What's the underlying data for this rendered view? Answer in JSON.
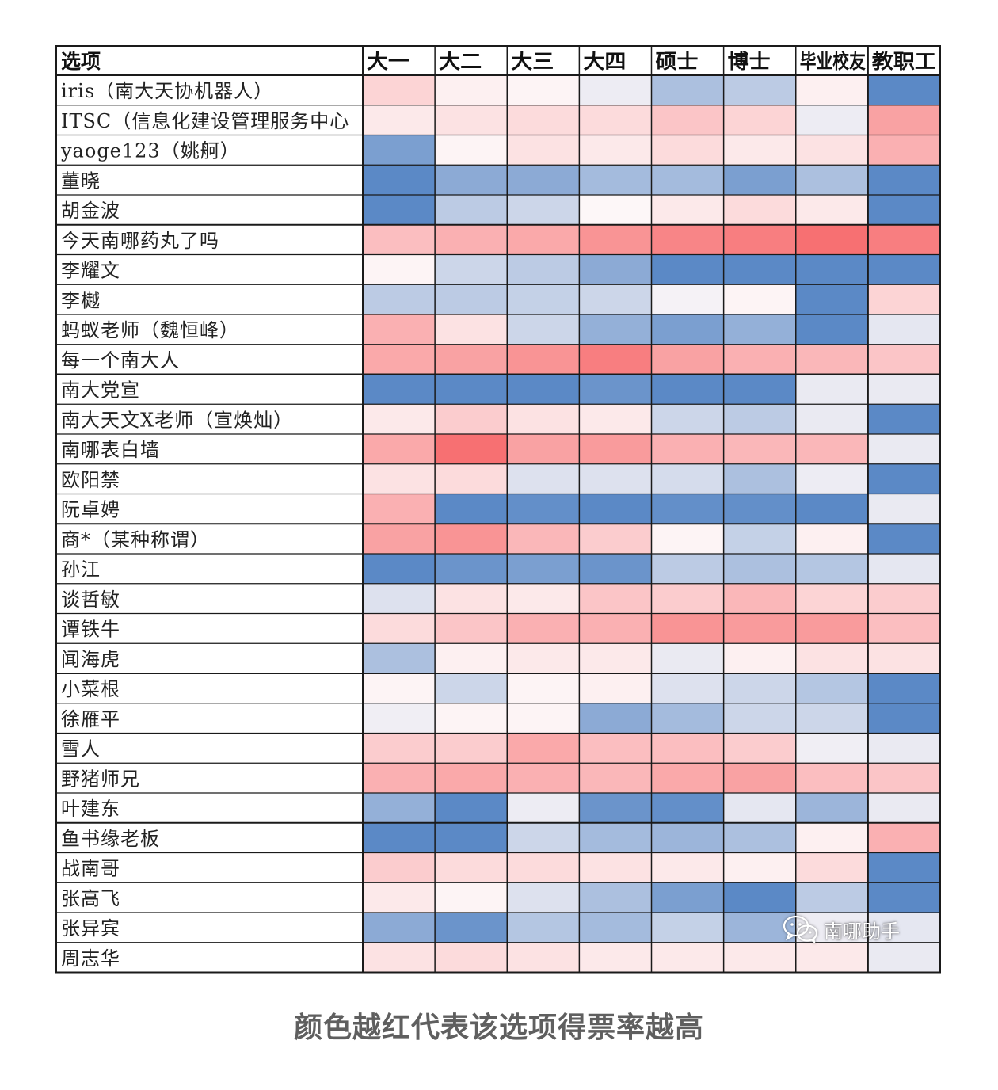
{
  "chart_data": {
    "type": "heatmap",
    "header_label": "选项",
    "columns": [
      "大一",
      "大二",
      "大三",
      "大四",
      "硕士",
      "博士",
      "毕业校友",
      "教职工"
    ],
    "rows": [
      "iris（南大天协机器人）",
      "ITSC（信息化建设管理服务中心",
      "yaoge123（姚舸）",
      "董晓",
      "胡金波",
      "今天南哪药丸了吗",
      "李耀文",
      "李樾",
      "蚂蚁老师（魏恒峰）",
      "每一个南大人",
      "南大党宣",
      "南大天文X老师（宣焕灿）",
      "南哪表白墙",
      "欧阳禁",
      "阮卓娉",
      "商*（某种称谓）",
      "孙江",
      "谈哲敏",
      "谭铁牛",
      "闻海虎",
      "小菜根",
      "徐雁平",
      "雪人",
      "野猪师兄",
      "叶建东",
      "鱼书缘老板",
      "战南哥",
      "张高飞",
      "张异宾",
      "周志华"
    ],
    "scale": {
      "min": -1,
      "max": 1,
      "low_color": "#5b89c6",
      "mid_color": "#fdf7f8",
      "high_color": "#f7696b"
    },
    "values": [
      [
        0.25,
        0.05,
        0.02,
        -0.1,
        -0.5,
        -0.4,
        0.05,
        -1.0
      ],
      [
        0.1,
        0.15,
        0.2,
        0.2,
        0.35,
        0.25,
        -0.1,
        0.6
      ],
      [
        -0.8,
        0.02,
        0.15,
        0.1,
        0.2,
        0.1,
        0.15,
        0.5
      ],
      [
        -1.0,
        -0.7,
        -0.7,
        -0.55,
        -0.55,
        -0.8,
        -0.5,
        -1.0
      ],
      [
        -1.0,
        -0.4,
        -0.3,
        0.0,
        0.1,
        0.2,
        0.1,
        -1.0
      ],
      [
        0.4,
        0.5,
        0.55,
        0.7,
        0.8,
        0.85,
        0.95,
        0.85
      ],
      [
        0.02,
        -0.3,
        -0.4,
        -0.7,
        -1.0,
        -1.0,
        -1.0,
        -1.0
      ],
      [
        -0.4,
        -0.4,
        -0.35,
        -0.3,
        -0.05,
        0.02,
        -1.0,
        0.25
      ],
      [
        0.5,
        0.15,
        -0.3,
        -0.65,
        -0.8,
        -0.65,
        -1.0,
        -0.15
      ],
      [
        0.55,
        0.6,
        0.7,
        0.85,
        0.6,
        0.5,
        0.45,
        0.35
      ],
      [
        -1.0,
        -1.0,
        -1.0,
        -0.9,
        -1.0,
        -1.0,
        -0.12,
        -0.12
      ],
      [
        0.1,
        0.3,
        0.15,
        0.1,
        -0.3,
        -0.4,
        -0.12,
        -1.0
      ],
      [
        0.55,
        0.95,
        0.6,
        0.65,
        0.5,
        0.45,
        0.45,
        -0.12
      ],
      [
        0.15,
        0.2,
        -0.2,
        -0.2,
        -0.25,
        -0.5,
        -0.1,
        -1.0
      ],
      [
        0.5,
        -1.0,
        -0.95,
        -1.0,
        -0.95,
        -0.95,
        -1.0,
        -0.12
      ],
      [
        0.6,
        0.7,
        0.45,
        0.3,
        0.02,
        -0.35,
        0.05,
        -1.0
      ],
      [
        -1.0,
        -0.9,
        -0.8,
        -0.9,
        -0.4,
        -0.5,
        -0.45,
        -0.15
      ],
      [
        -0.2,
        0.15,
        0.1,
        0.35,
        0.3,
        0.45,
        0.25,
        0.3
      ],
      [
        0.2,
        0.35,
        0.5,
        0.5,
        0.7,
        0.65,
        0.65,
        0.4
      ],
      [
        -0.5,
        0.05,
        0.1,
        0.1,
        -0.12,
        0.05,
        0.15,
        0.15
      ],
      [
        0.02,
        -0.3,
        0.02,
        0.05,
        -0.2,
        -0.3,
        -0.45,
        -1.0
      ],
      [
        -0.08,
        0.02,
        0.02,
        -0.7,
        -0.55,
        -0.3,
        -0.3,
        -1.0
      ],
      [
        0.3,
        0.3,
        0.55,
        0.4,
        0.4,
        0.3,
        -0.08,
        -0.12
      ],
      [
        0.5,
        0.55,
        0.5,
        0.45,
        0.55,
        0.6,
        0.4,
        0.35
      ],
      [
        -0.65,
        -1.0,
        -0.1,
        -0.9,
        -0.95,
        -0.15,
        -0.6,
        -0.12
      ],
      [
        -1.0,
        -1.0,
        -0.3,
        -0.55,
        -0.6,
        -0.5,
        0.05,
        0.5
      ],
      [
        0.3,
        0.2,
        0.2,
        0.15,
        0.1,
        0.05,
        0.2,
        -1.0
      ],
      [
        0.1,
        0.02,
        -0.2,
        -0.5,
        -0.8,
        -1.0,
        -0.4,
        -1.0
      ],
      [
        -0.7,
        -0.9,
        -0.45,
        -0.55,
        -0.35,
        -0.6,
        -0.1,
        -0.15
      ],
      [
        0.15,
        0.2,
        0.15,
        0.1,
        0.1,
        0.1,
        0.1,
        -0.12
      ]
    ]
  },
  "caption": "颜色越红代表该选项得票率越高",
  "watermark": {
    "text": "南哪助手",
    "icon": "wechat-icon"
  }
}
